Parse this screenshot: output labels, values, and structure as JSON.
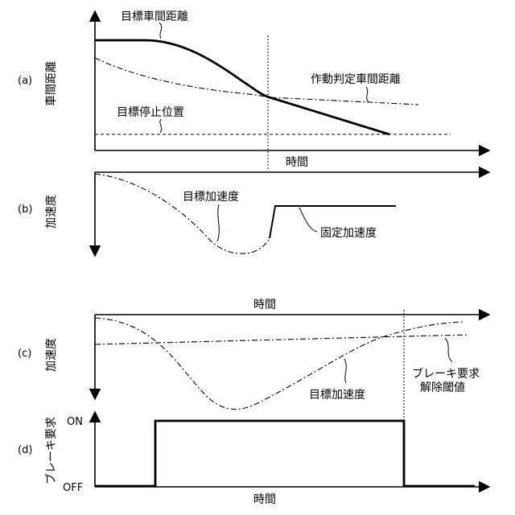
{
  "panels": {
    "a": {
      "tag": "(a)",
      "y_axis_label": "車間距離",
      "x_axis_label": "時間",
      "labels": {
        "target_distance": "目標車間距離",
        "activation_distance": "作動判定車間距離",
        "target_stop_position": "目標停止位置"
      }
    },
    "b": {
      "tag": "(b)",
      "y_axis_label": "加速度",
      "labels": {
        "target_accel": "目標加速度",
        "fixed_accel": "固定加速度"
      }
    },
    "c": {
      "tag": "(c)",
      "y_axis_label": "加速度",
      "x_axis_label": "時間",
      "labels": {
        "target_accel": "目標加速度",
        "release_threshold_line1": "ブレーキ要求",
        "release_threshold_line2": "解除閾値"
      }
    },
    "d": {
      "tag": "(d)",
      "y_axis_label": "ブレーキ要求",
      "x_axis_label": "時間",
      "on_label": "ON",
      "off_label": "OFF"
    }
  }
}
